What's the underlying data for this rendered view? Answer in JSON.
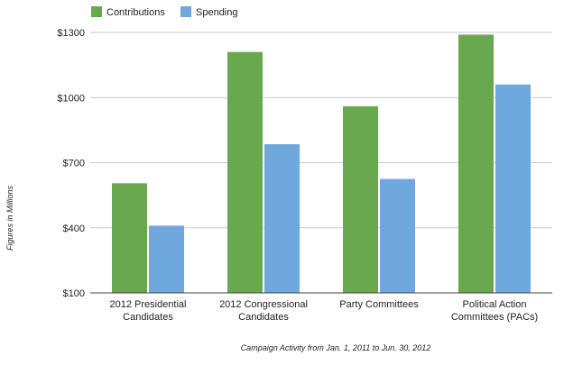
{
  "chart_data": {
    "type": "bar",
    "title": "",
    "categories": [
      [
        "2012 Presidential",
        "Candidates"
      ],
      [
        "2012 Congressional",
        "Candidates"
      ],
      [
        "Party Committees"
      ],
      [
        "Political Action",
        "Committees (PACs)"
      ]
    ],
    "series": [
      {
        "name": "Contributions",
        "color": "#6aa84f",
        "values": [
          605,
          1210,
          960,
          1290
        ]
      },
      {
        "name": "Spending",
        "color": "#6fa8dc",
        "values": [
          410,
          785,
          625,
          1060
        ]
      }
    ],
    "ylim": [
      100,
      1300
    ],
    "yticks": [
      100,
      400,
      700,
      1000,
      1300
    ],
    "ytick_labels": [
      "$100",
      "$400",
      "$700",
      "$1000",
      "$1300"
    ],
    "ylabel": "Figures in Millions",
    "xlabel": "Campaign Activity from Jan. 1, 2011 to Jun. 30, 2012",
    "legend_position": "top-left",
    "grid": true
  }
}
